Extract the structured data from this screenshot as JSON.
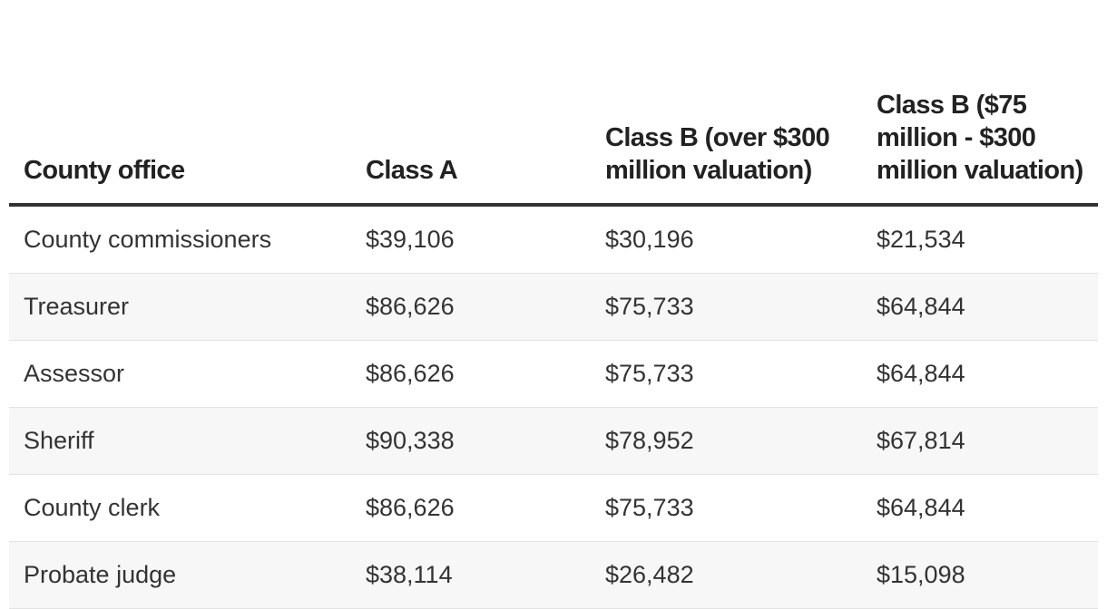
{
  "chart_data": {
    "type": "table",
    "columns": [
      "County office",
      "Class A",
      "Class B (over $300 million valuation)",
      "Class B ($75 million - $300 million valuation)"
    ],
    "rows": [
      [
        "County commissioners",
        "$39,106",
        "$30,196",
        "$21,534"
      ],
      [
        "Treasurer",
        "$86,626",
        "$75,733",
        "$64,844"
      ],
      [
        "Assessor",
        "$86,626",
        "$75,733",
        "$64,844"
      ],
      [
        "Sheriff",
        "$90,338",
        "$78,952",
        "$67,814"
      ],
      [
        "County clerk",
        "$86,626",
        "$75,733",
        "$64,844"
      ],
      [
        "Probate judge",
        "$38,114",
        "$26,482",
        "$15,098"
      ]
    ]
  },
  "colors": {
    "header_rule": "#333333",
    "row_alt_background": "#f7f7f7",
    "row_divider": "#e2e2e2"
  }
}
